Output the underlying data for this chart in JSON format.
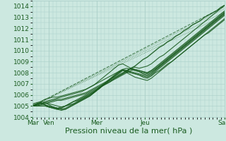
{
  "background_color": "#cce8e0",
  "plot_bg_color": "#cce8e0",
  "grid_color": "#aacfc8",
  "line_color": "#1a5c20",
  "ylim": [
    1004,
    1014.5
  ],
  "yticks": [
    1004,
    1005,
    1006,
    1007,
    1008,
    1009,
    1010,
    1011,
    1012,
    1013,
    1014
  ],
  "xlabel": "Pression niveau de la mer( hPa )",
  "xlabel_fontsize": 8,
  "tick_fontsize": 6.5,
  "day_labels": [
    "Mar",
    "Ven",
    "Mer",
    "Jeu",
    "Sam"
  ],
  "day_positions": [
    0,
    8,
    32,
    56,
    96
  ],
  "total_hours": 96,
  "series": [
    [
      1005.0,
      1005.2,
      1005.3,
      1005.1,
      1004.9,
      1004.8,
      1004.7,
      1004.8,
      1005.0,
      1005.2,
      1005.4,
      1005.5,
      1005.7,
      1005.9,
      1006.1,
      1006.3,
      1006.5,
      1006.8,
      1007.0,
      1007.2,
      1007.5,
      1007.7,
      1007.9,
      1008.1,
      1008.4,
      1008.6,
      1008.9,
      1009.2,
      1009.4,
      1009.7,
      1010.0,
      1010.3,
      1010.5,
      1010.8,
      1011.0,
      1011.3,
      1011.5,
      1011.8,
      1012.0,
      1012.3,
      1012.5,
      1012.7,
      1013.0,
      1013.2,
      1013.4,
      1013.6,
      1013.9,
      1014.1
    ],
    [
      1005.0,
      1005.1,
      1005.2,
      1005.3,
      1005.1,
      1004.9,
      1004.8,
      1004.7,
      1004.7,
      1004.9,
      1005.1,
      1005.3,
      1005.5,
      1005.7,
      1005.9,
      1006.2,
      1006.5,
      1006.8,
      1007.1,
      1007.4,
      1007.7,
      1008.0,
      1008.2,
      1008.1,
      1008.0,
      1007.9,
      1007.8,
      1007.6,
      1007.5,
      1007.7,
      1008.0,
      1008.2,
      1008.5,
      1008.8,
      1009.0,
      1009.3,
      1009.6,
      1009.9,
      1010.2,
      1010.5,
      1010.8,
      1011.1,
      1011.4,
      1011.6,
      1011.9,
      1012.2,
      1012.5,
      1012.8
    ],
    [
      1005.0,
      1005.1,
      1005.2,
      1005.3,
      1005.4,
      1005.5,
      1005.6,
      1005.6,
      1005.7,
      1005.8,
      1005.9,
      1006.0,
      1006.1,
      1006.2,
      1006.4,
      1006.6,
      1006.8,
      1007.0,
      1007.2,
      1007.4,
      1007.6,
      1007.8,
      1008.0,
      1008.2,
      1008.4,
      1008.3,
      1008.2,
      1008.1,
      1008.0,
      1008.2,
      1008.4,
      1008.7,
      1009.0,
      1009.3,
      1009.6,
      1009.9,
      1010.2,
      1010.5,
      1010.8,
      1011.1,
      1011.4,
      1011.7,
      1012.0,
      1012.3,
      1012.6,
      1012.9,
      1013.2,
      1013.5
    ],
    [
      1005.1,
      1005.2,
      1005.3,
      1005.4,
      1005.5,
      1005.6,
      1005.7,
      1005.8,
      1005.9,
      1006.0,
      1006.1,
      1006.2,
      1006.3,
      1006.5,
      1006.7,
      1006.9,
      1007.1,
      1007.3,
      1007.5,
      1007.7,
      1007.9,
      1008.1,
      1008.3,
      1008.4,
      1008.3,
      1008.2,
      1008.1,
      1008.0,
      1007.9,
      1008.1,
      1008.3,
      1008.6,
      1008.9,
      1009.2,
      1009.5,
      1009.8,
      1010.1,
      1010.4,
      1010.7,
      1011.0,
      1011.3,
      1011.6,
      1011.9,
      1012.2,
      1012.5,
      1012.8,
      1013.1,
      1013.4
    ],
    [
      1005.0,
      1005.0,
      1005.0,
      1005.0,
      1004.9,
      1004.8,
      1004.7,
      1004.6,
      1004.7,
      1004.9,
      1005.1,
      1005.3,
      1005.5,
      1005.7,
      1005.9,
      1006.2,
      1006.5,
      1006.8,
      1007.1,
      1007.4,
      1007.7,
      1008.0,
      1008.3,
      1008.2,
      1008.1,
      1008.0,
      1007.9,
      1007.8,
      1007.7,
      1007.9,
      1008.2,
      1008.5,
      1008.8,
      1009.1,
      1009.4,
      1009.7,
      1010.0,
      1010.3,
      1010.6,
      1010.9,
      1011.2,
      1011.5,
      1011.8,
      1012.1,
      1012.4,
      1012.7,
      1013.0,
      1013.3
    ],
    [
      1005.0,
      1005.1,
      1005.2,
      1005.3,
      1005.2,
      1005.1,
      1005.0,
      1004.9,
      1005.0,
      1005.1,
      1005.2,
      1005.4,
      1005.6,
      1005.8,
      1006.0,
      1006.3,
      1006.6,
      1006.9,
      1007.2,
      1007.5,
      1007.8,
      1008.1,
      1008.3,
      1008.0,
      1007.8,
      1007.6,
      1007.5,
      1007.4,
      1007.3,
      1007.5,
      1007.8,
      1008.1,
      1008.4,
      1008.7,
      1009.0,
      1009.3,
      1009.6,
      1009.9,
      1010.2,
      1010.5,
      1010.8,
      1011.1,
      1011.4,
      1011.7,
      1012.0,
      1012.3,
      1012.6,
      1012.9
    ],
    [
      1005.0,
      1005.1,
      1005.2,
      1005.1,
      1005.0,
      1004.9,
      1004.8,
      1004.9,
      1005.0,
      1005.2,
      1005.4,
      1005.6,
      1005.8,
      1006.0,
      1006.2,
      1006.4,
      1006.6,
      1006.8,
      1007.0,
      1007.2,
      1007.4,
      1007.6,
      1007.8,
      1008.0,
      1008.2,
      1008.3,
      1008.2,
      1008.1,
      1008.0,
      1008.2,
      1008.5,
      1008.8,
      1009.1,
      1009.4,
      1009.7,
      1010.0,
      1010.3,
      1010.6,
      1010.9,
      1011.2,
      1011.5,
      1011.8,
      1012.1,
      1012.4,
      1012.7,
      1013.0,
      1013.3,
      1013.6
    ],
    [
      1005.2,
      1005.3,
      1005.4,
      1005.6,
      1005.7,
      1005.8,
      1005.8,
      1005.9,
      1006.0,
      1006.1,
      1006.2,
      1006.3,
      1006.4,
      1006.5,
      1006.7,
      1006.9,
      1007.2,
      1007.5,
      1007.8,
      1008.1,
      1008.4,
      1008.7,
      1008.8,
      1008.6,
      1008.4,
      1008.2,
      1008.1,
      1007.9,
      1007.8,
      1008.0,
      1008.3,
      1008.6,
      1008.9,
      1009.2,
      1009.5,
      1009.8,
      1010.1,
      1010.4,
      1010.7,
      1011.0,
      1011.3,
      1011.6,
      1011.9,
      1012.2,
      1012.5,
      1012.8,
      1013.1,
      1013.4
    ],
    [
      1005.0,
      1005.0,
      1005.1,
      1005.2,
      1005.3,
      1005.4,
      1005.5,
      1005.5,
      1005.6,
      1005.7,
      1005.8,
      1005.9,
      1006.0,
      1006.1,
      1006.3,
      1006.5,
      1006.7,
      1006.9,
      1007.1,
      1007.3,
      1007.5,
      1007.7,
      1007.9,
      1008.2,
      1008.4,
      1008.5,
      1008.4,
      1008.5,
      1008.6,
      1008.8,
      1009.1,
      1009.4,
      1009.6,
      1009.9,
      1010.2,
      1010.5,
      1010.8,
      1011.1,
      1011.4,
      1011.7,
      1012.0,
      1012.3,
      1012.6,
      1012.9,
      1013.2,
      1013.5,
      1013.8,
      1014.1
    ],
    [
      1005.0,
      1005.0,
      1005.0,
      1005.0,
      1004.9,
      1004.9,
      1004.8,
      1004.7,
      1004.8,
      1005.0,
      1005.2,
      1005.4,
      1005.6,
      1005.8,
      1006.0,
      1006.2,
      1006.5,
      1006.8,
      1007.1,
      1007.4,
      1007.7,
      1007.9,
      1008.2,
      1008.1,
      1008.0,
      1007.9,
      1007.8,
      1007.7,
      1007.6,
      1007.8,
      1008.1,
      1008.4,
      1008.7,
      1009.0,
      1009.3,
      1009.6,
      1009.9,
      1010.2,
      1010.5,
      1010.8,
      1011.1,
      1011.4,
      1011.7,
      1012.0,
      1012.3,
      1012.6,
      1012.9,
      1013.2
    ]
  ],
  "straight_lines": [
    [
      1005.0,
      1014.0
    ],
    [
      1005.0,
      1013.8
    ],
    [
      1005.0,
      1013.5
    ],
    [
      1005.0,
      1013.2
    ]
  ]
}
